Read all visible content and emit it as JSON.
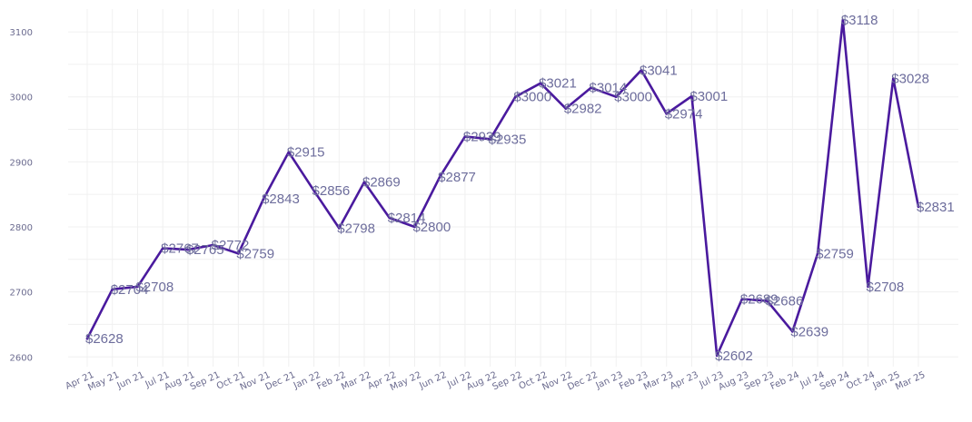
{
  "chart_data": {
    "type": "line",
    "title": "",
    "xlabel": "",
    "ylabel": "",
    "ylim": [
      2585,
      3135
    ],
    "yticks": [
      2600,
      2700,
      2800,
      2900,
      3000,
      3100
    ],
    "grid": true,
    "line_color": "#4a1a9e",
    "categories": [
      "Apr 21",
      "May 21",
      "Jun 21",
      "Jul 21",
      "Aug 21",
      "Sep 21",
      "Oct 21",
      "Nov 21",
      "Dec 21",
      "Jan 22",
      "Feb 22",
      "Mar 22",
      "Apr 22",
      "May 22",
      "Jun 22",
      "Jul 22",
      "Aug 22",
      "Sep 22",
      "Oct 22",
      "Nov 22",
      "Dec 22",
      "Jan 23",
      "Feb 23",
      "Mar 23",
      "Apr 23",
      "Jul 23",
      "Aug 23",
      "Sep 23",
      "Feb 24",
      "Jul 24",
      "Sep 24",
      "Oct 24",
      "Jan 25",
      "Mar 25"
    ],
    "values": [
      2628,
      2704,
      2708,
      2767,
      2765,
      2772,
      2759,
      2843,
      2915,
      2856,
      2798,
      2869,
      2814,
      2800,
      2877,
      2939,
      2935,
      3000,
      3021,
      2982,
      3014,
      3000,
      3041,
      2974,
      3001,
      2602,
      2689,
      2686,
      2639,
      2759,
      3118,
      2708,
      3028,
      2831
    ],
    "labels": [
      "$2628",
      "$2704",
      "$2708",
      "$2767",
      "$2765",
      "$2772",
      "$2759",
      "$2843",
      "$2915",
      "$2856",
      "$2798",
      "$2869",
      "$2814",
      "$2800",
      "$2877",
      "$2939",
      "$2935",
      "$3000",
      "$3021",
      "$2982",
      "$3014",
      "$3000",
      "$3041",
      "$2974",
      "$3001",
      "$2602",
      "$2689",
      "$2686",
      "$2639",
      "$2759",
      "$3118",
      "$2708",
      "$3028",
      "$2831"
    ]
  }
}
